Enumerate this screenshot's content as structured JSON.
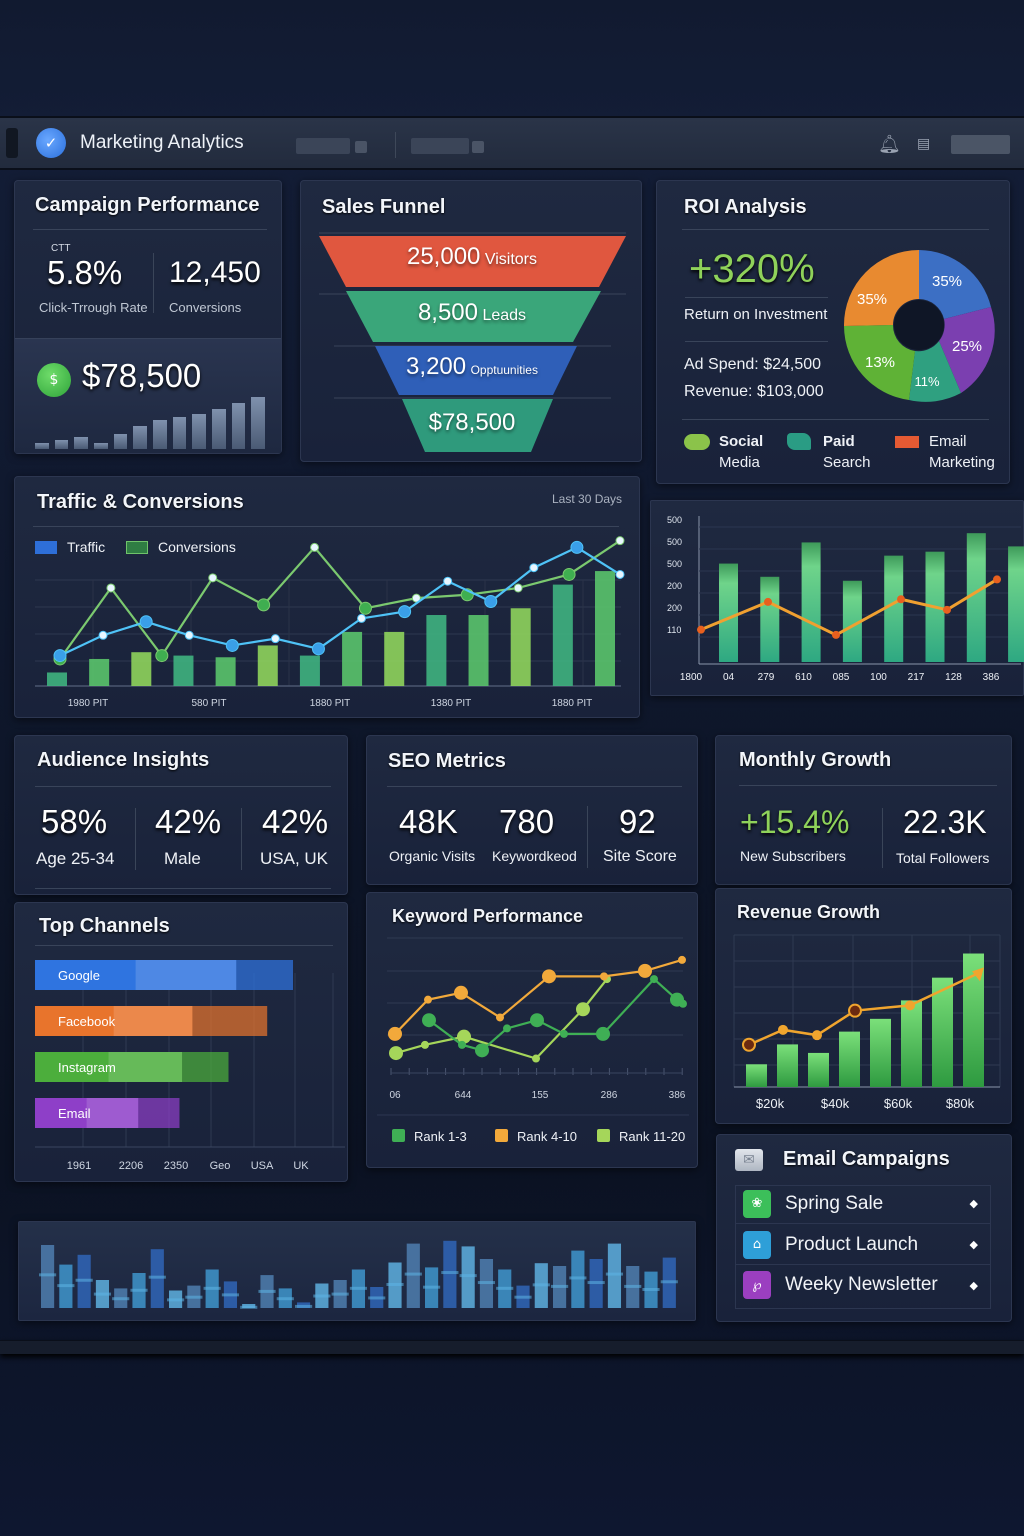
{
  "app": {
    "title": "Marketing Analytics",
    "icons": {
      "logo": "logo-icon",
      "bell": "bell-icon",
      "flag": "flag-icon"
    }
  },
  "campaign_performance": {
    "title": "Campaign Performance",
    "ctr_caption": "CTT",
    "ctr_value": "5.8%",
    "ctr_label": "Click-Trrough Rate",
    "conversions_value": "12,450",
    "conversions_label": "Conversions",
    "revenue_value": "$78,500",
    "revenue_icon": "money-icon",
    "sparkline": [
      8,
      12,
      16,
      8,
      20,
      30,
      38,
      42,
      46,
      52,
      60,
      68
    ]
  },
  "sales_funnel": {
    "title": "Sales Funnel",
    "stages": [
      {
        "value": "25,000",
        "label": "Visitors",
        "color": "#e0573f"
      },
      {
        "value": "8,500",
        "label": "Leads",
        "color": "#3aa67a"
      },
      {
        "value": "3,200",
        "label": "Opptuunities",
        "color": "#2f5fb8"
      },
      {
        "value": "$78,500",
        "label": "",
        "color": "#2f9a7c"
      }
    ]
  },
  "roi": {
    "title": "ROI Analysis",
    "value": "+320%",
    "value_label": "Return on Investment",
    "ad_spend_label": "Ad Spend:",
    "ad_spend_value": "$24,500",
    "revenue_label": "Revenue:",
    "revenue_value": "$103,000",
    "legend": [
      {
        "line1": "Social",
        "line2": "Media",
        "color": "#8bc34a"
      },
      {
        "line1": "Paid",
        "line2": "Search",
        "color": "#2a9c84"
      },
      {
        "line1": "Email",
        "line2": "Marketing",
        "color": "#e55a33"
      }
    ]
  },
  "traffic": {
    "title": "Traffic & Conversions",
    "range_label": "Last 30 Days",
    "legend_traffic": "Traffic",
    "legend_conversions": "Conversions"
  },
  "audience": {
    "title": "Audience Insights",
    "stats": [
      {
        "value": "58%",
        "label": "Age 25-34"
      },
      {
        "value": "42%",
        "label": "Male"
      },
      {
        "value": "42%",
        "label": "USA, UK"
      }
    ]
  },
  "seo": {
    "title": "SEO Metrics",
    "stats": [
      {
        "value": "48K",
        "label": "Organic Visits"
      },
      {
        "value": "780",
        "label": "Keywordkeod"
      },
      {
        "value": "92",
        "label": "Site Score"
      }
    ]
  },
  "monthly_growth": {
    "title": "Monthly Growth",
    "subscribers_value": "+15.4%",
    "subscribers_label": "New Subscribers",
    "followers_value": "22.3K",
    "followers_label": "Total Followers"
  },
  "email_campaigns": {
    "title": "Email Campaigns",
    "header_icon": "envelope-icon",
    "items": [
      {
        "label": "Spring Sale",
        "color": "#3cbf5a",
        "icon": "spring-sale-icon",
        "action": "◆"
      },
      {
        "label": "Product Launch",
        "color": "#2e9fd8",
        "icon": "product-launch-icon",
        "action": "◆"
      },
      {
        "label": "Weeky Newsletter",
        "color": "#9b3fc0",
        "icon": "newsletter-icon",
        "action": "◆"
      }
    ]
  },
  "chart_data": [
    {
      "id": "traffic_conversions",
      "type": "line",
      "title": "Traffic & Conversions",
      "x_tick_labels": [
        "1980 PIT",
        "580 PIT",
        "1880 PIT",
        "1380 PIT",
        "1880 PIT"
      ],
      "ylim": [
        0,
        100
      ],
      "grid": true,
      "legend": "top-left",
      "series": [
        {
          "name": "Traffic",
          "color": "#4fc3f7",
          "values": [
            18,
            30,
            38,
            30,
            24,
            28,
            22,
            40,
            44,
            62,
            50,
            70,
            82,
            66
          ]
        },
        {
          "name": "Conversions",
          "color": "#7bc96f",
          "values": [
            16,
            58,
            18,
            64,
            48,
            82,
            46,
            52,
            54,
            58,
            66,
            86
          ]
        },
        {
          "name": "Bars",
          "color": "#3fb27f",
          "values": [
            8,
            16,
            20,
            18,
            17,
            24,
            18,
            32,
            32,
            42,
            42,
            46,
            60,
            68
          ]
        }
      ]
    },
    {
      "id": "bar_line_right",
      "type": "bar",
      "x_tick_labels": [
        "1800",
        "04",
        "279",
        "610",
        "085",
        "100",
        "217",
        "128",
        "386"
      ],
      "y_tick_labels": [
        "500",
        "500",
        "500",
        "200",
        "200",
        "110"
      ],
      "ylim": [
        0,
        560
      ],
      "series": [
        {
          "name": "Bars",
          "color": "#4cc584",
          "values": [
            380,
            330,
            460,
            315,
            410,
            425,
            495,
            445
          ]
        },
        {
          "name": "Line",
          "color": "#f0a030",
          "values": [
            130,
            235,
            110,
            245,
            205,
            320
          ]
        }
      ]
    },
    {
      "id": "top_channels",
      "type": "bar",
      "title": "Top Channels",
      "categories": [
        "Google",
        "Facebook",
        "Instagram",
        "Email"
      ],
      "series": [
        {
          "name": "Primary",
          "values": [
            78,
            61,
            57,
            40
          ]
        },
        {
          "name": "Total",
          "values": [
            100,
            90,
            75,
            56
          ]
        }
      ],
      "colors": [
        "#2f74e0",
        "#e8742c",
        "#4cae3c",
        "#8e3fc8"
      ],
      "x_tick_labels": [
        "1961",
        "2206",
        "2350",
        "Geo",
        "USA",
        "UK"
      ],
      "orientation": "horizontal"
    },
    {
      "id": "keyword_performance",
      "type": "line",
      "title": "Keyword Performance",
      "x_tick_labels": [
        "06",
        "644",
        "155",
        "286",
        "386"
      ],
      "ylim": [
        0,
        100
      ],
      "legend": "bottom",
      "series": [
        {
          "name": "Rank 1-3",
          "color": "#3faf55",
          "values": [
            40,
            22,
            18,
            34,
            40,
            30,
            30,
            70,
            55,
            52
          ]
        },
        {
          "name": "Rank 4-10",
          "color": "#f2a93b",
          "values": [
            30,
            55,
            60,
            42,
            72,
            72,
            76,
            84
          ]
        },
        {
          "name": "Rank 11-20",
          "color": "#a5d65a",
          "values": [
            16,
            22,
            28,
            12,
            48,
            70
          ]
        }
      ]
    },
    {
      "id": "revenue_growth",
      "type": "bar",
      "title": "Revenue Growth",
      "x_tick_labels": [
        "$20k",
        "$40k",
        "$60k",
        "$80k"
      ],
      "ylim": [
        0,
        100
      ],
      "series": [
        {
          "name": "Revenue",
          "color": "#4fc35a",
          "values": [
            16,
            30,
            24,
            39,
            48,
            61,
            77,
            94
          ]
        },
        {
          "name": "Trend",
          "color": "#f0a52e",
          "values": [
            33,
            47,
            42,
            65,
            70,
            100
          ]
        }
      ]
    },
    {
      "id": "bottom_bars",
      "type": "bar",
      "series": [
        {
          "name": "Bars",
          "color": "#4f8fc2",
          "values": [
            90,
            62,
            76,
            40,
            28,
            50,
            84,
            25,
            32,
            55,
            38,
            5,
            47,
            28,
            8,
            35,
            40,
            55,
            30,
            65,
            92,
            58,
            96,
            88,
            70,
            55,
            32,
            64,
            60,
            82,
            70,
            92,
            60,
            52,
            72
          ]
        }
      ]
    }
  ]
}
